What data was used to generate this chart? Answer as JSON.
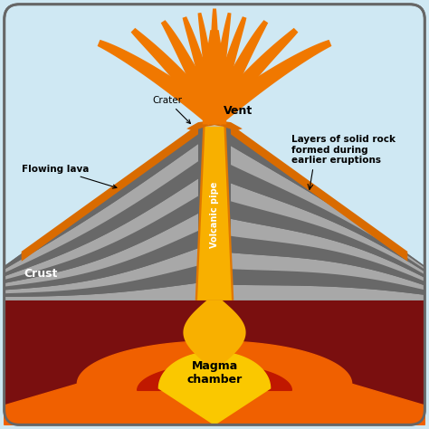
{
  "bg_color": "#cfe8f3",
  "sky_color": "#cfe8f3",
  "border_color": "#666666",
  "volcano_dark_gray": "#686868",
  "volcano_light_gray": "#a8a8a8",
  "lava_orange": "#d96b00",
  "lava_bright_orange": "#f07800",
  "lava_yellow": "#f8c000",
  "crust_color": "#7a0f0f",
  "magma_yellow": "#fac800",
  "magma_orange": "#f06000",
  "magma_red": "#c01800",
  "pipe_orange": "#e07800",
  "pipe_yellow": "#f8b000",
  "labels": {
    "crater": "Crater",
    "vent": "Vent",
    "flowing_lava": "Flowing lava",
    "volcanic_pipe": "Volcanic pipe",
    "layers": "Layers of solid rock\nformed during\nearlier eruptions",
    "crust": "Crust",
    "magma_chamber": "Magma\nchamber"
  }
}
